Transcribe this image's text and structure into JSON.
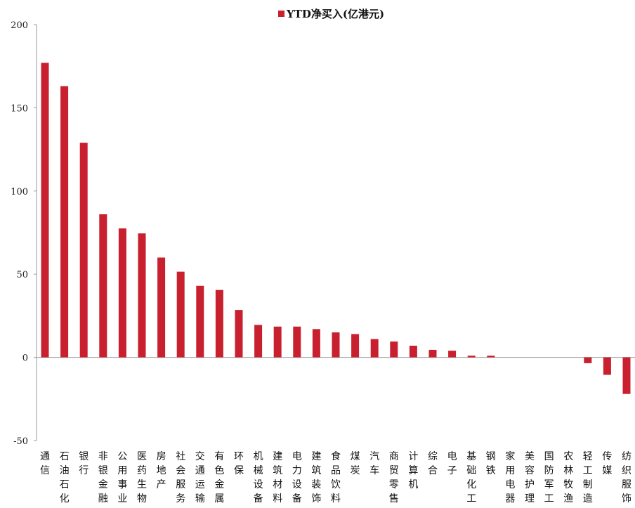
{
  "chart_data": {
    "type": "bar",
    "legend_position": "top-center",
    "grid": false,
    "ylim": [
      -50,
      200
    ],
    "yticks": [
      -50,
      0,
      50,
      100,
      150,
      200
    ],
    "bar_color": "#c8202e",
    "categories": [
      "通信",
      "石油石化",
      "银行",
      "非银金融",
      "公用事业",
      "医药生物",
      "房地产",
      "社会服务",
      "交通运输",
      "有色金属",
      "环保",
      "机械设备",
      "建筑材料",
      "电力设备",
      "建筑装饰",
      "食品饮料",
      "煤炭",
      "汽车",
      "商贸零售",
      "计算机",
      "综合",
      "电子",
      "基础化工",
      "钢铁",
      "家用电器",
      "美容护理",
      "国防军工",
      "农林牧渔",
      "轻工制造",
      "传媒",
      "纺织服饰"
    ],
    "series": [
      {
        "name": "YTD净买入(亿港元)",
        "values": [
          177,
          163,
          129,
          86,
          77.5,
          74.5,
          60,
          51.5,
          43,
          40.5,
          28.5,
          19.5,
          18.5,
          18.5,
          17,
          15,
          14,
          11,
          9.5,
          7,
          4.5,
          4,
          1,
          1,
          0,
          0,
          0,
          0,
          -3.5,
          -10.5,
          -22
        ]
      }
    ]
  }
}
